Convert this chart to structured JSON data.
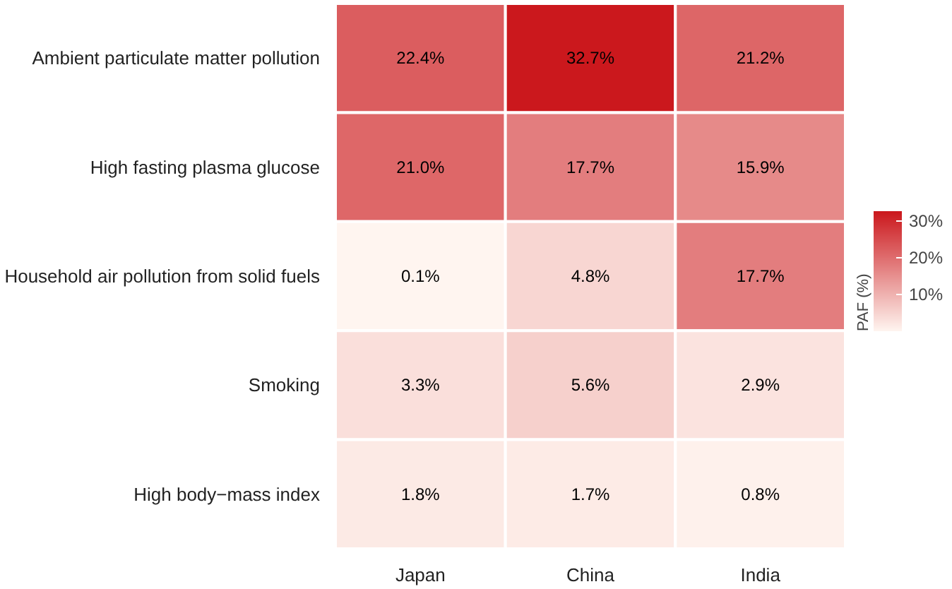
{
  "chart_data": {
    "type": "heatmap",
    "categories": [
      "Japan",
      "China",
      "India"
    ],
    "y_categories": [
      "Ambient particulate matter pollution",
      "High fasting plasma glucose",
      "Household air pollution from solid fuels",
      "Smoking",
      "High body−mass index"
    ],
    "cells": [
      [
        22.4,
        32.7,
        21.2
      ],
      [
        21.0,
        17.7,
        15.9
      ],
      [
        0.1,
        4.8,
        17.7
      ],
      [
        3.3,
        5.6,
        2.9
      ],
      [
        1.8,
        1.7,
        0.8
      ]
    ],
    "cell_labels": [
      [
        "22.4%",
        "32.7%",
        "21.2%"
      ],
      [
        "21.0%",
        "17.7%",
        "15.9%"
      ],
      [
        "0.1%",
        "4.8%",
        "17.7%"
      ],
      [
        "3.3%",
        "5.6%",
        "2.9%"
      ],
      [
        "1.8%",
        "1.7%",
        "0.8%"
      ]
    ],
    "clim": [
      0.1,
      32.7
    ],
    "cticks": [
      {
        "value": 10,
        "label": "10%"
      },
      {
        "value": 20,
        "label": "20%"
      },
      {
        "value": 30,
        "label": "30%"
      }
    ],
    "clabel": "PAF (%)"
  }
}
